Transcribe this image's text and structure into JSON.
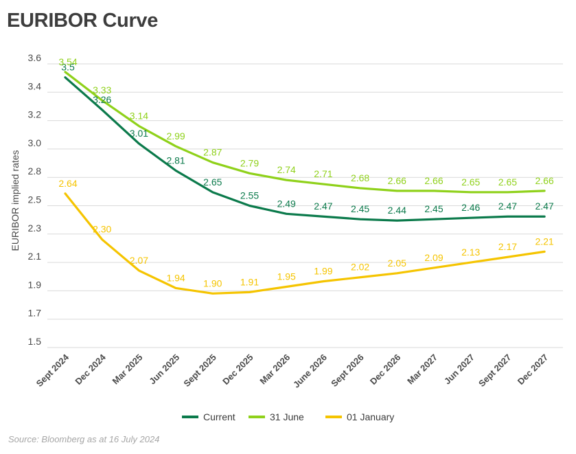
{
  "title": "EURIBOR Curve",
  "source": "Source: Bloomberg as at 16 July 2024",
  "chart_data": {
    "type": "line",
    "title": "EURIBOR Curve",
    "xlabel": "",
    "ylabel": "EURIBOR implied rates",
    "ylim": [
      1.5,
      3.6
    ],
    "y_ticks": [
      "1.5",
      "1.7",
      "1.9",
      "2.1",
      "2.3",
      "2.5",
      "2.8",
      "3.0",
      "3.2",
      "3.4",
      "3.6"
    ],
    "grid": true,
    "legend_position": "bottom",
    "categories": [
      "Sept 2024",
      "Dec 2024",
      "Mar 2025",
      "Jun 2025",
      "Sept 2025",
      "Dec 2025",
      "Mar 2026",
      "June 2026",
      "Sept 2026",
      "Dec 2026",
      "Mar 2027",
      "Jun 2027",
      "Sept 2027",
      "Dec 2027"
    ],
    "series": [
      {
        "name": "Current",
        "color": "#0b7a4b",
        "values": [
          3.5,
          3.26,
          3.01,
          2.81,
          2.65,
          2.55,
          2.49,
          2.47,
          2.45,
          2.44,
          2.45,
          2.46,
          2.47,
          2.47
        ],
        "labels": [
          "3.5",
          "3.26",
          "3.01",
          "2.81",
          "2.65",
          "2.55",
          "2.49",
          "2.47",
          "2.45",
          "2.44",
          "2.45",
          "2.46",
          "2.47",
          "2.47"
        ]
      },
      {
        "name": "31 June",
        "color": "#8fd11a",
        "values": [
          3.54,
          3.33,
          3.14,
          2.99,
          2.87,
          2.79,
          2.74,
          2.71,
          2.68,
          2.66,
          2.66,
          2.65,
          2.65,
          2.66
        ],
        "labels": [
          "3.54",
          "3.33",
          "3.14",
          "2.99",
          "2.87",
          "2.79",
          "2.74",
          "2.71",
          "2.68",
          "2.66",
          "2.66",
          "2.65",
          "2.65",
          "2.66"
        ]
      },
      {
        "name": "01 January",
        "color": "#f5c400",
        "values": [
          2.64,
          2.3,
          2.07,
          1.94,
          1.9,
          1.91,
          1.95,
          1.99,
          2.02,
          2.05,
          2.09,
          2.13,
          2.17,
          2.21
        ],
        "labels": [
          "2.64",
          "2.30",
          "2.07",
          "1.94",
          "1.90",
          "1.91",
          "1.95",
          "1.99",
          "2.02",
          "2.05",
          "2.09",
          "2.13",
          "2.17",
          "2.21"
        ]
      }
    ]
  }
}
